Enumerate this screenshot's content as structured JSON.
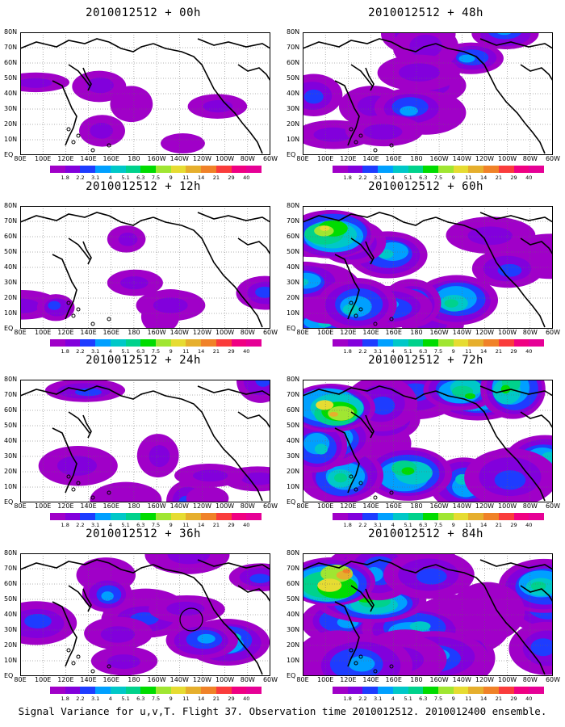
{
  "panels": [
    {
      "title": "2010012512 + 00h"
    },
    {
      "title": "2010012512 + 48h"
    },
    {
      "title": "2010012512 + 12h"
    },
    {
      "title": "2010012512 + 60h"
    },
    {
      "title": "2010012512 + 24h"
    },
    {
      "title": "2010012512 + 72h"
    },
    {
      "title": "2010012512 + 36h"
    },
    {
      "title": "2010012512 + 84h"
    }
  ],
  "lat_labels": [
    "80N",
    "70N",
    "60N",
    "50N",
    "40N",
    "30N",
    "20N",
    "10N",
    "EQ"
  ],
  "lon_labels": [
    "80E",
    "100E",
    "120E",
    "140E",
    "160E",
    "180",
    "160W",
    "140W",
    "120W",
    "100W",
    "80W",
    "60W"
  ],
  "colorbar": {
    "labels": [
      "1.8",
      "2.2",
      "3.1",
      "4",
      "5.1",
      "6.3",
      "7.5",
      "9",
      "11",
      "14",
      "21",
      "29",
      "40"
    ],
    "colors": [
      "#a000c8",
      "#8200dc",
      "#1e3cff",
      "#00a0ff",
      "#00c8c8",
      "#00d28c",
      "#00dc00",
      "#a0e632",
      "#e6dc32",
      "#e6af2d",
      "#f08228",
      "#fa3c3c",
      "#f00082",
      "#e60096"
    ]
  },
  "caption": "Signal Variance for u,v,T. Flight 37. Observation time 2010012512. 2010012400 ensemble."
}
